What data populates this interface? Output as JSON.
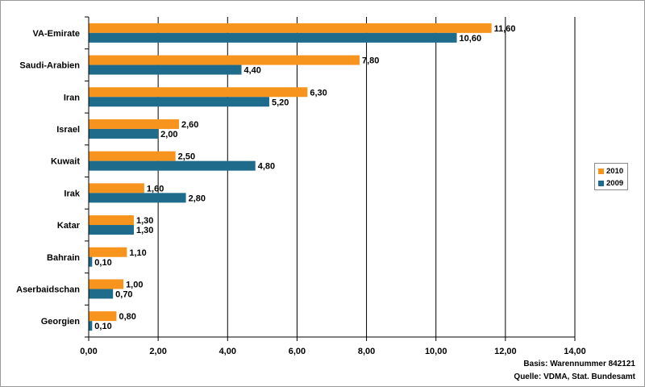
{
  "chart_data": {
    "type": "bar",
    "orientation": "horizontal",
    "categories": [
      "VA-Emirate",
      "Saudi-Arabien",
      "Iran",
      "Israel",
      "Kuwait",
      "Irak",
      "Katar",
      "Bahrain",
      "Aserbaidschan",
      "Georgien"
    ],
    "series": [
      {
        "name": "2010",
        "color": "#f7941d",
        "values": [
          11.6,
          7.8,
          6.3,
          2.6,
          2.5,
          1.6,
          1.3,
          1.1,
          1.0,
          0.8
        ],
        "labels": [
          "11,60",
          "7,80",
          "6,30",
          "2,60",
          "2,50",
          "1,60",
          "1,30",
          "1,10",
          "1,00",
          "0,80"
        ]
      },
      {
        "name": "2009",
        "color": "#1f6b8c",
        "values": [
          10.6,
          4.4,
          5.2,
          2.0,
          4.8,
          2.8,
          1.3,
          0.1,
          0.7,
          0.1
        ],
        "labels": [
          "10,60",
          "4,40",
          "5,20",
          "2,00",
          "4,80",
          "2,80",
          "1,30",
          "0,10",
          "0,70",
          "0,10"
        ]
      }
    ],
    "xlim": [
      0,
      14
    ],
    "xticks": [
      0,
      2,
      4,
      6,
      8,
      10,
      12,
      14
    ],
    "xtick_labels": [
      "0,00",
      "2,00",
      "4,00",
      "6,00",
      "8,00",
      "10,00",
      "12,00",
      "14,00"
    ],
    "grid": "vertical",
    "legend_position": "right"
  },
  "footer": {
    "basis": "Basis: Warennummer 842121",
    "quelle": "Quelle: VDMA, Stat. Bundesamt"
  }
}
